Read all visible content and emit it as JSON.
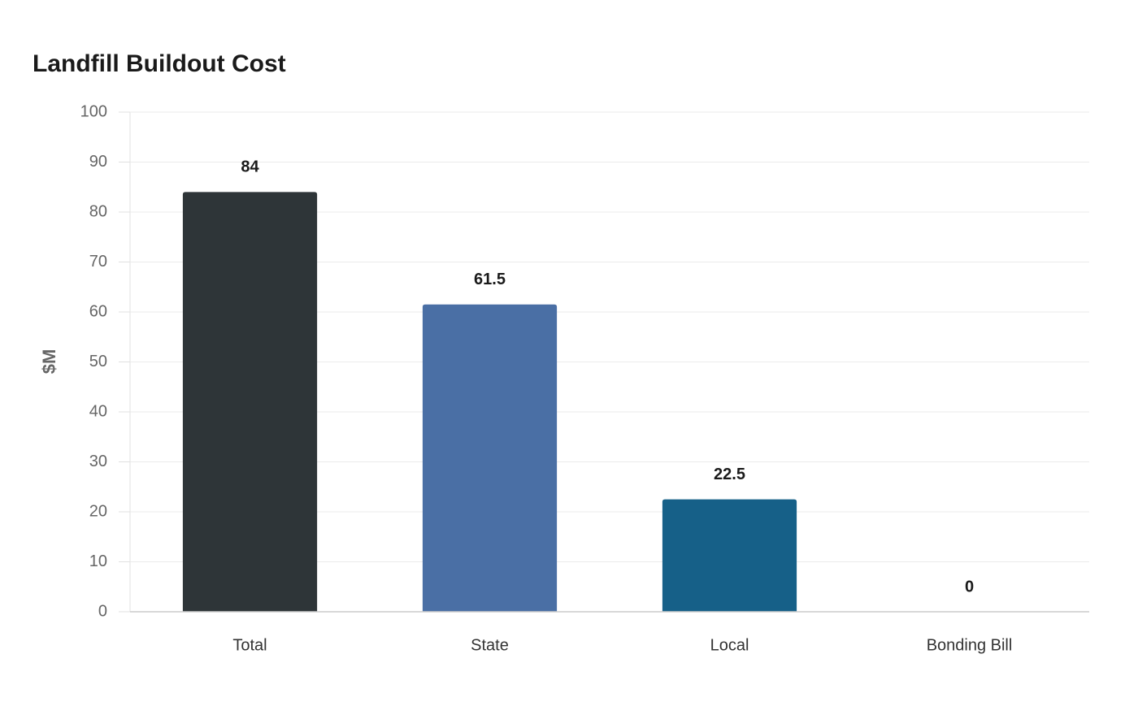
{
  "chart_data": {
    "type": "bar",
    "title": "Landfill Buildout Cost",
    "y_label": "$M",
    "categories": [
      "Total",
      "State",
      "Local",
      "Bonding Bill"
    ],
    "values": [
      84,
      61.5,
      22.5,
      0
    ],
    "colors": [
      "#2e3538",
      "#4a6fa5",
      "#166088",
      "#8aa1b1"
    ],
    "ylim": [
      0,
      100
    ],
    "yticks": [
      0,
      10,
      20,
      30,
      40,
      50,
      60,
      70,
      80,
      90,
      100
    ],
    "grid": true
  }
}
